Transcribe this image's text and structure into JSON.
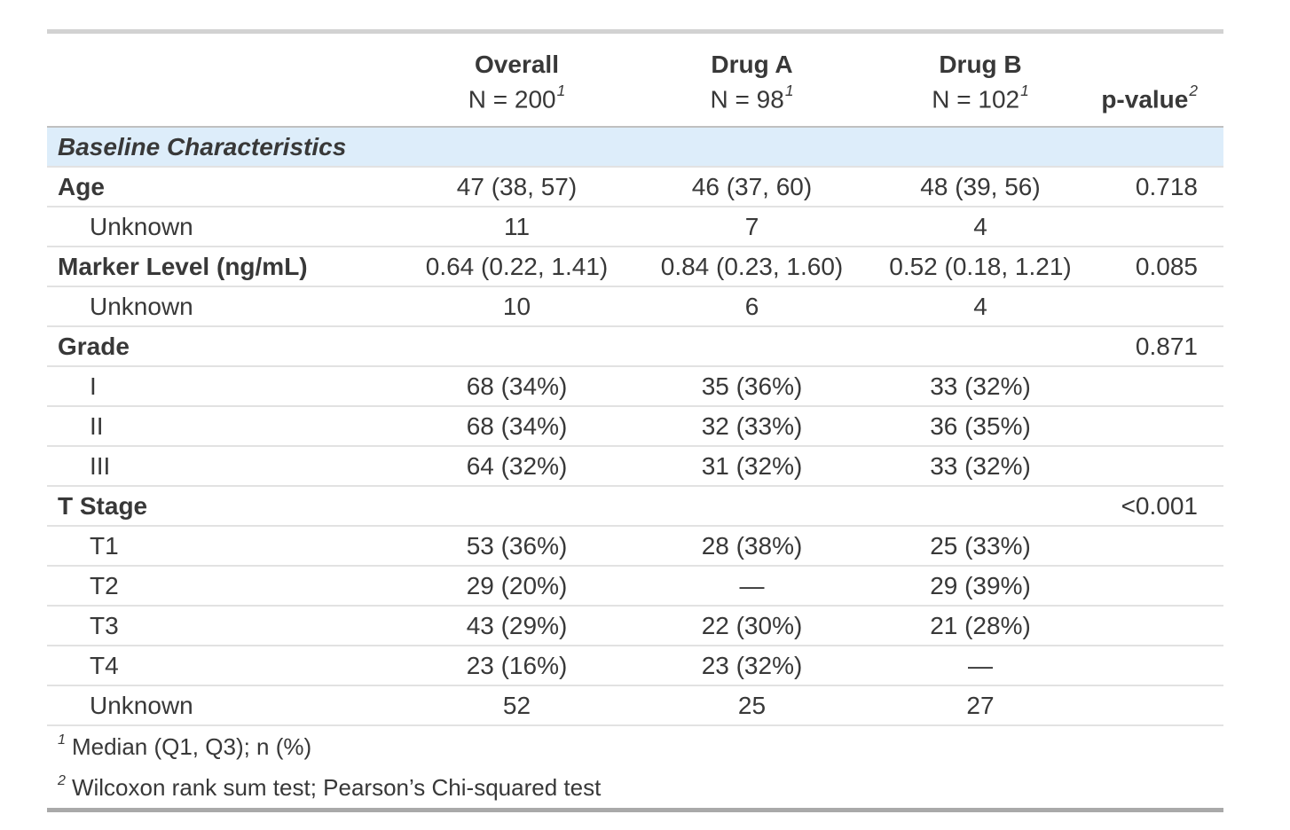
{
  "table": {
    "columns": [
      {
        "label": ""
      },
      {
        "label": "Overall",
        "sublabel": "N = 200",
        "footnote_mark": "1"
      },
      {
        "label": "Drug A",
        "sublabel": "N = 98",
        "footnote_mark": "1"
      },
      {
        "label": "Drug B",
        "sublabel": "N = 102",
        "footnote_mark": "1"
      },
      {
        "label": "p-value",
        "footnote_mark": "2"
      }
    ],
    "section_header": "Baseline Characteristics",
    "rows": [
      {
        "label": "Age",
        "bold": true,
        "indent": false,
        "overall": "47 (38, 57)",
        "drug_a": "46 (37, 60)",
        "drug_b": "48 (39, 56)",
        "p": "0.718"
      },
      {
        "label": "Unknown",
        "bold": false,
        "indent": true,
        "overall": "11",
        "drug_a": "7",
        "drug_b": "4",
        "p": ""
      },
      {
        "label": "Marker Level (ng/mL)",
        "bold": true,
        "indent": false,
        "overall": "0.64 (0.22, 1.41)",
        "drug_a": "0.84 (0.23, 1.60)",
        "drug_b": "0.52 (0.18, 1.21)",
        "p": "0.085"
      },
      {
        "label": "Unknown",
        "bold": false,
        "indent": true,
        "overall": "10",
        "drug_a": "6",
        "drug_b": "4",
        "p": ""
      },
      {
        "label": "Grade",
        "bold": true,
        "indent": false,
        "overall": "",
        "drug_a": "",
        "drug_b": "",
        "p": "0.871"
      },
      {
        "label": "I",
        "bold": false,
        "indent": true,
        "overall": "68 (34%)",
        "drug_a": "35 (36%)",
        "drug_b": "33 (32%)",
        "p": ""
      },
      {
        "label": "II",
        "bold": false,
        "indent": true,
        "overall": "68 (34%)",
        "drug_a": "32 (33%)",
        "drug_b": "36 (35%)",
        "p": ""
      },
      {
        "label": "III",
        "bold": false,
        "indent": true,
        "overall": "64 (32%)",
        "drug_a": "31 (32%)",
        "drug_b": "33 (32%)",
        "p": ""
      },
      {
        "label": "T Stage",
        "bold": true,
        "indent": false,
        "overall": "",
        "drug_a": "",
        "drug_b": "",
        "p": "<0.001"
      },
      {
        "label": "T1",
        "bold": false,
        "indent": true,
        "overall": "53 (36%)",
        "drug_a": "28 (38%)",
        "drug_b": "25 (33%)",
        "p": ""
      },
      {
        "label": "T2",
        "bold": false,
        "indent": true,
        "overall": "29 (20%)",
        "drug_a": "—",
        "drug_b": "29 (39%)",
        "p": ""
      },
      {
        "label": "T3",
        "bold": false,
        "indent": true,
        "overall": "43 (29%)",
        "drug_a": "22 (30%)",
        "drug_b": "21 (28%)",
        "p": ""
      },
      {
        "label": "T4",
        "bold": false,
        "indent": true,
        "overall": "23 (16%)",
        "drug_a": "23 (32%)",
        "drug_b": "—",
        "p": ""
      },
      {
        "label": "Unknown",
        "bold": false,
        "indent": true,
        "overall": "52",
        "drug_a": "25",
        "drug_b": "27",
        "p": ""
      }
    ],
    "footnotes": [
      {
        "mark": "1",
        "text": "Median (Q1, Q3); n (%)"
      },
      {
        "mark": "2",
        "text": "Wilcoxon rank sum test; Pearson’s Chi-squared test"
      }
    ],
    "colors": {
      "section_row_bg": "#ddedfa",
      "text": "#383838",
      "border_light": "#e2e2e2",
      "border_top": "#d2d2d2",
      "border_bottom": "#a9a9a9"
    }
  }
}
